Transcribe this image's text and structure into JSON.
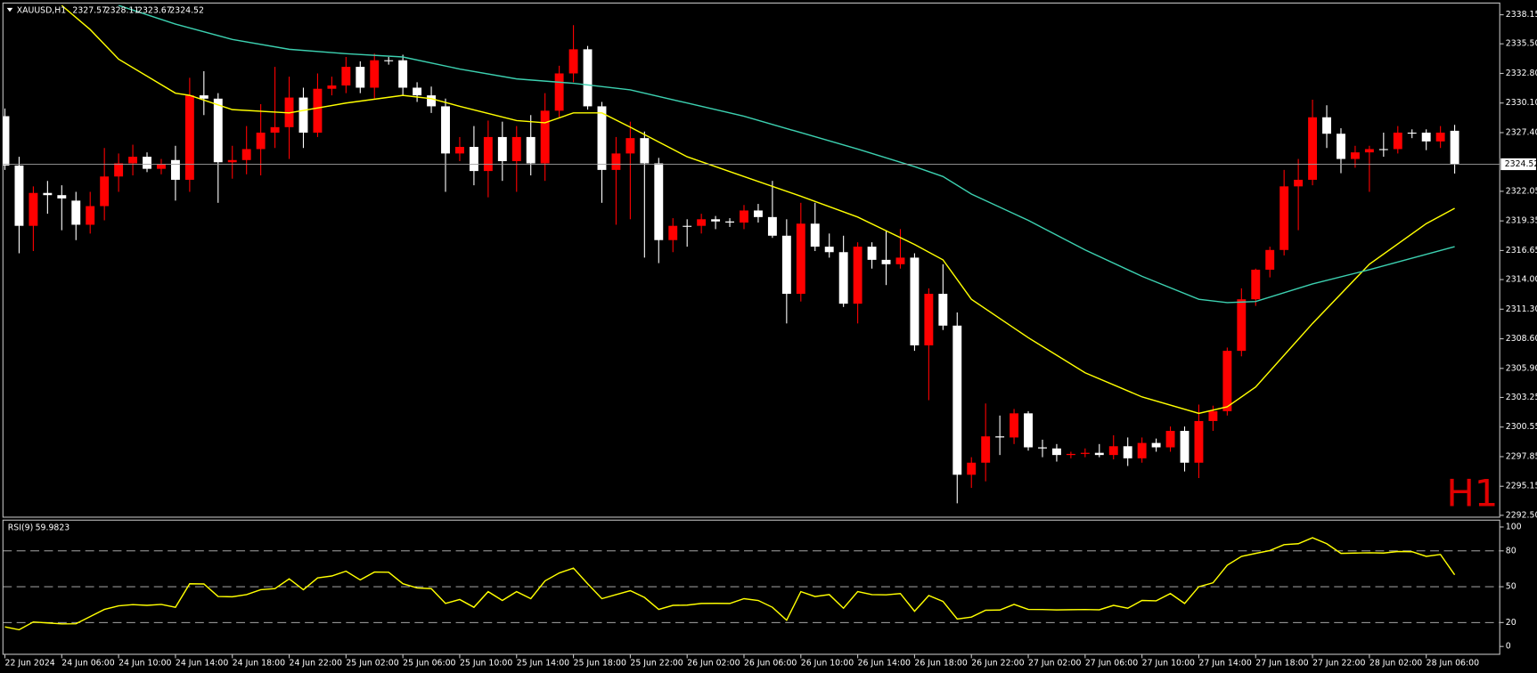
{
  "chart_data": [
    {
      "type": "candlestick",
      "symbol": "XAUUSD,H1",
      "header_values": [
        2327.57,
        2328.11,
        2323.67,
        2324.52
      ],
      "watermark": "H1",
      "categories": [
        "22 Jun 2024",
        null,
        null,
        null,
        "24 Jun 06:00",
        null,
        null,
        null,
        "24 Jun 10:00",
        null,
        null,
        null,
        "24 Jun 14:00",
        null,
        null,
        null,
        "24 Jun 18:00",
        null,
        null,
        null,
        "24 Jun 22:00",
        null,
        null,
        null,
        "25 Jun 02:00",
        null,
        null,
        null,
        "25 Jun 06:00",
        null,
        null,
        null,
        "25 Jun 10:00",
        null,
        null,
        null,
        "25 Jun 14:00",
        null,
        null,
        null,
        "25 Jun 18:00",
        null,
        null,
        null,
        "25 Jun 22:00",
        null,
        null,
        null,
        "26 Jun 02:00",
        null,
        null,
        null,
        "26 Jun 06:00",
        null,
        null,
        null,
        "26 Jun 10:00",
        null,
        null,
        null,
        "26 Jun 14:00",
        null,
        null,
        null,
        "26 Jun 18:00",
        null,
        null,
        null,
        "26 Jun 22:00",
        null,
        null,
        null,
        "27 Jun 02:00",
        null,
        null,
        null,
        "27 Jun 06:00",
        null,
        null,
        null,
        "27 Jun 10:00",
        null,
        null,
        null,
        "27 Jun 14:00",
        null,
        null,
        null,
        "27 Jun 18:00",
        null,
        null,
        null,
        "27 Jun 22:00",
        null,
        null,
        null,
        "28 Jun 02:00",
        null,
        null,
        null,
        "28 Jun 06:00",
        null,
        null
      ],
      "open": [
        2328.9,
        2324.4,
        2318.9,
        2321.9,
        2321.7,
        2321.2,
        2319.0,
        2320.7,
        2323.4,
        2324.6,
        2325.2,
        2324.1,
        2324.9,
        2323.1,
        2330.8,
        2330.5,
        2324.7,
        2324.9,
        2325.9,
        2327.4,
        2327.9,
        2330.6,
        2327.4,
        2331.4,
        2331.7,
        2333.4,
        2331.5,
        2334.0,
        2334.0,
        2331.5,
        2330.8,
        2329.8,
        2325.5,
        2326.1,
        2323.9,
        2327.0,
        2324.8,
        2327.0,
        2324.6,
        2329.4,
        2332.8,
        2335.0,
        2329.8,
        2324.0,
        2325.5,
        2326.9,
        2324.6,
        2317.6,
        2318.9,
        2318.9,
        2319.5,
        2319.3,
        2319.2,
        2320.3,
        2319.7,
        2318.0,
        2312.7,
        2319.1,
        2317.0,
        2316.5,
        2311.8,
        2317.0,
        2315.8,
        2315.4,
        2316.0,
        2308.0,
        2312.7,
        2309.8,
        2296.2,
        2297.3,
        2299.7,
        2299.6,
        2301.8,
        2298.7,
        2298.6,
        2298.0,
        2298.1,
        2298.2,
        2298.0,
        2298.8,
        2297.7,
        2299.1,
        2298.7,
        2300.2,
        2297.3,
        2301.1,
        2302.0,
        2307.5,
        2312.2,
        2314.9,
        2316.7,
        2322.5,
        2323.1,
        2328.8,
        2327.3,
        2325.0,
        2325.6,
        2325.9,
        2325.9,
        2327.4,
        2327.4,
        2326.6,
        2327.57
      ],
      "high": [
        2329.6,
        2325.2,
        2322.5,
        2323.0,
        2322.6,
        2322.0,
        2322.0,
        2326.0,
        2325.5,
        2326.3,
        2325.6,
        2325.0,
        2326.2,
        2332.4,
        2333.0,
        2331.0,
        2326.2,
        2328.0,
        2330.0,
        2333.4,
        2332.5,
        2331.5,
        2332.8,
        2332.5,
        2334.3,
        2333.9,
        2334.6,
        2334.3,
        2334.5,
        2332.0,
        2331.6,
        2330.5,
        2327.0,
        2328.0,
        2328.5,
        2328.4,
        2328.0,
        2329.0,
        2331.0,
        2333.5,
        2337.2,
        2335.3,
        2330.2,
        2327.0,
        2328.4,
        2327.5,
        2325.1,
        2319.6,
        2319.5,
        2320.0,
        2319.8,
        2319.6,
        2320.8,
        2320.9,
        2323.0,
        2319.5,
        2321.0,
        2321.0,
        2318.2,
        2318.0,
        2317.4,
        2317.4,
        2318.5,
        2318.6,
        2316.4,
        2313.2,
        2315.4,
        2311.0,
        2297.8,
        2302.7,
        2301.6,
        2302.2,
        2302.0,
        2299.4,
        2299.0,
        2298.3,
        2298.6,
        2299.0,
        2299.8,
        2299.6,
        2299.6,
        2299.5,
        2300.6,
        2300.6,
        2302.6,
        2302.5,
        2307.8,
        2313.2,
        2315.0,
        2317.0,
        2324.0,
        2325.0,
        2330.4,
        2329.9,
        2327.8,
        2326.2,
        2326.2,
        2327.4,
        2328.0,
        2327.7,
        2327.7,
        2328.0,
        2328.11
      ],
      "low": [
        2324.0,
        2316.4,
        2316.6,
        2320.0,
        2318.5,
        2317.6,
        2318.2,
        2319.4,
        2322.0,
        2323.5,
        2323.8,
        2323.6,
        2321.2,
        2322.0,
        2329.0,
        2321.0,
        2323.2,
        2323.6,
        2323.5,
        2326.0,
        2325.0,
        2326.0,
        2327.0,
        2330.8,
        2331.0,
        2331.0,
        2330.5,
        2333.6,
        2330.8,
        2330.2,
        2329.2,
        2322.0,
        2324.8,
        2322.6,
        2321.5,
        2323.0,
        2322.0,
        2323.5,
        2323.0,
        2328.8,
        2332.0,
        2329.5,
        2321.0,
        2319.0,
        2319.5,
        2316.0,
        2315.5,
        2316.5,
        2317.0,
        2318.2,
        2318.6,
        2318.8,
        2318.6,
        2319.2,
        2317.8,
        2310.0,
        2312.0,
        2316.6,
        2316.0,
        2311.5,
        2310.0,
        2315.0,
        2313.5,
        2315.0,
        2307.5,
        2303.0,
        2309.4,
        2293.6,
        2295.0,
        2295.6,
        2298.0,
        2299.0,
        2298.4,
        2297.8,
        2297.4,
        2297.7,
        2297.8,
        2297.8,
        2297.6,
        2297.0,
        2297.3,
        2298.3,
        2298.3,
        2296.5,
        2295.9,
        2300.2,
        2301.6,
        2307.0,
        2311.6,
        2314.2,
        2316.2,
        2318.5,
        2322.6,
        2326.0,
        2323.7,
        2324.2,
        2322.0,
        2325.2,
        2325.5,
        2326.9,
        2325.8,
        2326.0,
        2323.67
      ],
      "close": [
        2324.4,
        2318.9,
        2321.9,
        2321.7,
        2321.4,
        2319.0,
        2320.7,
        2323.4,
        2324.6,
        2325.2,
        2324.1,
        2324.5,
        2323.1,
        2330.8,
        2330.5,
        2324.7,
        2324.9,
        2325.9,
        2327.4,
        2327.9,
        2330.6,
        2327.4,
        2331.4,
        2331.7,
        2333.4,
        2331.5,
        2334.0,
        2334.0,
        2331.5,
        2330.8,
        2329.8,
        2325.5,
        2326.1,
        2323.9,
        2327.0,
        2324.8,
        2327.0,
        2324.6,
        2329.4,
        2332.8,
        2335.0,
        2329.8,
        2324.0,
        2325.5,
        2326.9,
        2324.6,
        2317.6,
        2318.9,
        2318.9,
        2319.5,
        2319.3,
        2319.2,
        2320.3,
        2319.7,
        2318.0,
        2312.7,
        2319.1,
        2317.0,
        2316.5,
        2311.8,
        2317.0,
        2315.8,
        2315.4,
        2316.0,
        2308.0,
        2312.7,
        2309.8,
        2296.2,
        2297.3,
        2299.7,
        2299.6,
        2301.8,
        2298.7,
        2298.6,
        2298.0,
        2298.1,
        2298.2,
        2298.0,
        2298.8,
        2297.7,
        2299.1,
        2298.7,
        2300.2,
        2297.3,
        2301.1,
        2302.0,
        2307.5,
        2312.2,
        2314.9,
        2316.7,
        2322.5,
        2323.1,
        2328.8,
        2327.3,
        2325.0,
        2325.6,
        2325.9,
        2325.9,
        2327.4,
        2327.4,
        2326.6,
        2327.4,
        2324.52
      ],
      "up_color": "#ff0000",
      "down_color": "#ffffff",
      "lines": [
        {
          "color": "#ffff00",
          "x": [
            4,
            6,
            8,
            12,
            13,
            16,
            20,
            24,
            28,
            30,
            32,
            36,
            38,
            40,
            42,
            44,
            48,
            52,
            56,
            60,
            64,
            66,
            68,
            72,
            76,
            80,
            84,
            86,
            88,
            92,
            96,
            100,
            102
          ],
          "values": [
            2339.0,
            2336.8,
            2334.1,
            2331.0,
            2330.8,
            2329.5,
            2329.2,
            2330.1,
            2330.8,
            2330.5,
            2329.8,
            2328.5,
            2328.3,
            2329.2,
            2329.2,
            2327.9,
            2325.2,
            2323.4,
            2321.6,
            2319.7,
            2317.2,
            2315.8,
            2312.2,
            2308.7,
            2305.5,
            2303.3,
            2301.8,
            2302.4,
            2304.2,
            2310.0,
            2315.4,
            2319.1,
            2320.5
          ]
        },
        {
          "color": "#3cd0b0",
          "x": [
            8,
            12,
            16,
            20,
            24,
            28,
            32,
            36,
            40,
            44,
            48,
            52,
            56,
            60,
            64,
            66,
            68,
            72,
            76,
            80,
            84,
            86,
            88,
            92,
            96,
            100,
            102
          ],
          "values": [
            2339.0,
            2337.3,
            2335.9,
            2335.0,
            2334.6,
            2334.3,
            2333.2,
            2332.3,
            2331.9,
            2331.3,
            2330.1,
            2328.9,
            2327.4,
            2325.9,
            2324.3,
            2323.4,
            2321.8,
            2319.4,
            2316.7,
            2314.3,
            2312.2,
            2311.9,
            2312.0,
            2313.6,
            2314.9,
            2316.3,
            2317.0
          ]
        }
      ],
      "ylim": [
        2292.33,
        2339.13
      ],
      "yticks": [
        2338.15,
        {
          "value": 2335.5,
          "label": "2335.50"
        },
        {
          "value": 2332.8,
          "label": "2332.80"
        },
        {
          "value": 2330.1,
          "label": "2330.10"
        },
        {
          "value": 2327.4,
          "label": "2327.40"
        },
        2322.05,
        2319.35,
        2316.65,
        {
          "value": 2314,
          "label": "2314.00"
        },
        {
          "value": 2311.3,
          "label": "2311.30"
        },
        {
          "value": 2308.6,
          "label": "2308.60"
        },
        {
          "value": 2305.9,
          "label": "2305.90"
        },
        2303.25,
        2300.55,
        2297.85,
        2295.15,
        {
          "value": 2292.5,
          "label": "2292.50"
        }
      ],
      "price_line": 2324.52
    },
    {
      "type": "line",
      "title": "RSI(9)",
      "current_value": 59.9823,
      "color": "#ffff00",
      "values": [
        16.4,
        14,
        20.5,
        19.7,
        18.9,
        19,
        25,
        31,
        34,
        35,
        34.4,
        35.2,
        32.8,
        52.5,
        52.3,
        41.8,
        41.6,
        43.4,
        47.5,
        48.4,
        56.6,
        47.5,
        57.4,
        59,
        63,
        55.7,
        62.3,
        62.1,
        52.5,
        49,
        48.4,
        36,
        39.3,
        32.8,
        45.9,
        38.5,
        45.9,
        40,
        54.9,
        61.5,
        65.6,
        52.5,
        40,
        43.4,
        46.7,
        41,
        31,
        34.4,
        34.6,
        36,
        36.1,
        36,
        40,
        38.5,
        32.8,
        22,
        45.9,
        41.8,
        43.4,
        32,
        45.9,
        43.4,
        43.2,
        44.3,
        29.5,
        42.6,
        37.7,
        23,
        24.6,
        30.3,
        30.5,
        35.2,
        31,
        30.9,
        30.6,
        30.8,
        30.9,
        30.7,
        34.4,
        32,
        38.5,
        38.2,
        44.3,
        36,
        50,
        53.3,
        68,
        75.4,
        77.9,
        80.3,
        85.2,
        86,
        91,
        86,
        77.9,
        78.2,
        78.4,
        78.2,
        79.5,
        79.3,
        75.4,
        77,
        59.9823
      ],
      "ylim": [
        0,
        100
      ],
      "yticks": [
        0,
        20,
        50,
        80,
        100
      ],
      "levels": [
        20,
        50,
        80
      ]
    }
  ]
}
